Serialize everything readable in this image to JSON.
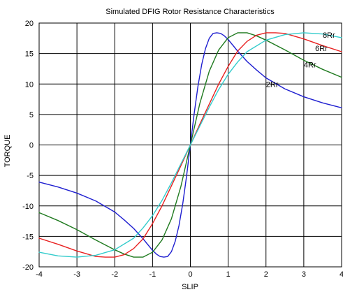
{
  "chart_data": {
    "type": "line",
    "title": "Simulated DFIG Rotor Resistance Characteristics",
    "xlabel": "SLIP",
    "ylabel": "TORQUE",
    "xlim": [
      -4,
      4
    ],
    "ylim": [
      -20,
      20
    ],
    "x_ticks": [
      "-4",
      "-3",
      "-2",
      "-1",
      "0",
      "1",
      "2",
      "3",
      "4"
    ],
    "y_ticks": [
      "20",
      "15",
      "10",
      "5",
      "0",
      "-5",
      "-10",
      "-15",
      "-20"
    ],
    "grid": true,
    "legend": "none",
    "series": [
      {
        "name": "2Rr",
        "color": "#1f1fd0",
        "x": [
          -4,
          -3.5,
          -3,
          -2.5,
          -2,
          -1.75,
          -1.5,
          -1.25,
          -1,
          -0.9,
          -0.8,
          -0.7,
          -0.6,
          -0.5,
          -0.4,
          -0.3,
          -0.2,
          -0.1,
          0,
          0.1,
          0.2,
          0.3,
          0.4,
          0.5,
          0.6,
          0.7,
          0.8,
          0.9,
          1,
          1.25,
          1.5,
          1.75,
          2,
          2.5,
          3,
          3.5,
          4
        ],
        "y": [
          -6.1,
          -6.9,
          -7.9,
          -9.2,
          -11,
          -12.3,
          -13.7,
          -15.4,
          -17.3,
          -17.9,
          -18.3,
          -18.4,
          -18.3,
          -17.5,
          -15.8,
          -13.2,
          -9.6,
          -5.1,
          0,
          5.1,
          9.6,
          13.2,
          15.8,
          17.5,
          18.3,
          18.4,
          18.3,
          17.9,
          17.3,
          15.4,
          13.7,
          12.3,
          11,
          9.2,
          7.9,
          6.9,
          6.1
        ]
      },
      {
        "name": "4Rr",
        "color": "#1f7a1f",
        "x": [
          -4,
          -3.5,
          -3,
          -2.5,
          -2,
          -1.75,
          -1.5,
          -1.25,
          -1,
          -0.75,
          -0.5,
          -0.25,
          0,
          0.25,
          0.5,
          0.75,
          1,
          1.25,
          1.5,
          1.75,
          2,
          2.5,
          3,
          3.5,
          4
        ],
        "y": [
          -11.1,
          -12.4,
          -13.9,
          -15.6,
          -17.2,
          -17.9,
          -18.4,
          -18.4,
          -17.6,
          -15.6,
          -12.1,
          -6.8,
          0,
          6.8,
          12.1,
          15.6,
          17.6,
          18.4,
          18.4,
          17.9,
          17.2,
          15.6,
          13.9,
          12.4,
          11.1
        ]
      },
      {
        "name": "6Rr",
        "color": "#e82020",
        "x": [
          -4,
          -3.5,
          -3,
          -2.5,
          -2.25,
          -2,
          -1.75,
          -1.5,
          -1.25,
          -1,
          -0.75,
          -0.5,
          -0.25,
          0,
          0.25,
          0.5,
          0.75,
          1,
          1.25,
          1.5,
          1.75,
          2,
          2.25,
          2.5,
          3,
          3.5,
          4
        ],
        "y": [
          -15.3,
          -16.3,
          -17.4,
          -18.3,
          -18.4,
          -18.4,
          -18.0,
          -17.0,
          -15.4,
          -12.9,
          -10.0,
          -6.7,
          -3.4,
          0,
          3.4,
          6.7,
          10.0,
          12.9,
          15.4,
          17.0,
          18.0,
          18.4,
          18.4,
          18.3,
          17.4,
          16.3,
          15.3
        ]
      },
      {
        "name": "8Rr",
        "color": "#33cccc",
        "x": [
          -4,
          -3.5,
          -3,
          -2.5,
          -2,
          -1.5,
          -1.25,
          -1,
          -0.75,
          -0.5,
          -0.25,
          0,
          0.25,
          0.5,
          0.75,
          1,
          1.25,
          1.5,
          2,
          2.5,
          3,
          3.5,
          4
        ],
        "y": [
          -17.6,
          -18.2,
          -18.4,
          -18.1,
          -17.2,
          -15.3,
          -13.6,
          -11.6,
          -9.1,
          -6.2,
          -3.1,
          0,
          3.1,
          6.2,
          9.1,
          11.6,
          13.6,
          15.3,
          17.2,
          18.1,
          18.4,
          18.2,
          17.6
        ]
      }
    ],
    "annotations": [
      {
        "text": "2Rr",
        "x": 2.0,
        "y": 9.5
      },
      {
        "text": "4Rr",
        "x": 3.0,
        "y": 12.7
      },
      {
        "text": "6Rr",
        "x": 3.3,
        "y": 15.4
      },
      {
        "text": "8Rr",
        "x": 3.5,
        "y": 17.6
      }
    ]
  }
}
